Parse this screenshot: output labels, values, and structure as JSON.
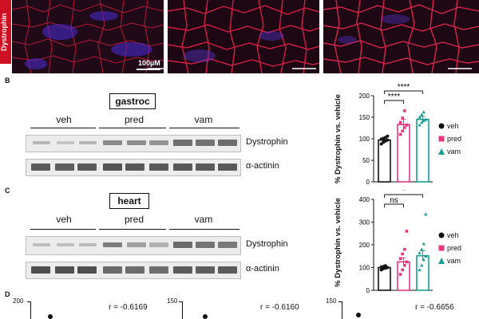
{
  "panel_a": {
    "row_label": "Dystrophin",
    "scale_bar_label": "100µM"
  },
  "panel_b": {
    "letter": "B",
    "tissue": "gastroc",
    "groups": [
      "veh",
      "pred",
      "vam"
    ],
    "blots": [
      "Dystrophin",
      "α-actinin"
    ]
  },
  "panel_c": {
    "letter": "C",
    "tissue": "heart",
    "groups": [
      "veh",
      "pred",
      "vam"
    ],
    "blots": [
      "Dystrophin",
      "α-actinin"
    ]
  },
  "panel_d": {
    "letter": "D",
    "correlations": [
      {
        "r_text": "r = -0.6169",
        "y_top_tick": "200"
      },
      {
        "r_text": "r = -0.6160",
        "y_top_tick": "150"
      },
      {
        "r_text": "r = -0.6656",
        "y_top_tick": "150"
      }
    ]
  },
  "legend": [
    {
      "label": "veh",
      "color": "#111111",
      "shape": "circle"
    },
    {
      "label": "pred",
      "color": "#e8377f",
      "shape": "square"
    },
    {
      "label": "vam",
      "color": "#1a9d94",
      "shape": "triangle"
    }
  ],
  "chart_data": [
    {
      "type": "bar",
      "ylabel": "% Dystrophin vs. vehicle",
      "categories": [
        "veh",
        "pred",
        "vam"
      ],
      "values": [
        97,
        133,
        145
      ],
      "errors": [
        4,
        12,
        7
      ],
      "colors": [
        "#111111",
        "#e8377f",
        "#1a9d94"
      ],
      "ylim": [
        0,
        200
      ],
      "yticks": [
        0,
        50,
        100,
        150,
        200
      ],
      "points": [
        [
          88,
          92,
          95,
          97,
          99,
          101,
          103,
          106
        ],
        [
          110,
          118,
          126,
          132,
          138,
          148,
          165
        ],
        [
          132,
          138,
          142,
          145,
          150,
          156,
          162
        ]
      ],
      "annotations": [
        {
          "from": 0,
          "to": 1,
          "text": "****"
        },
        {
          "from": 0,
          "to": 2,
          "text": "****"
        }
      ]
    },
    {
      "type": "bar",
      "ylabel": "% Dystrophin vs. vehicle",
      "categories": [
        "veh",
        "pred",
        "vam"
      ],
      "values": [
        100,
        125,
        152
      ],
      "errors": [
        4,
        18,
        22
      ],
      "colors": [
        "#111111",
        "#e8377f",
        "#1a9d94"
      ],
      "ylim": [
        0,
        400
      ],
      "yticks": [
        0,
        100,
        200,
        300,
        400
      ],
      "points": [
        [
          90,
          95,
          98,
          100,
          102,
          105,
          108
        ],
        [
          70,
          90,
          110,
          125,
          140,
          160,
          180,
          260
        ],
        [
          90,
          110,
          135,
          150,
          165,
          180,
          205,
          335
        ]
      ],
      "annotations": [
        {
          "from": 0,
          "to": 1,
          "text": "ns"
        },
        {
          "from": 0,
          "to": 2,
          "text": "*"
        }
      ]
    }
  ]
}
